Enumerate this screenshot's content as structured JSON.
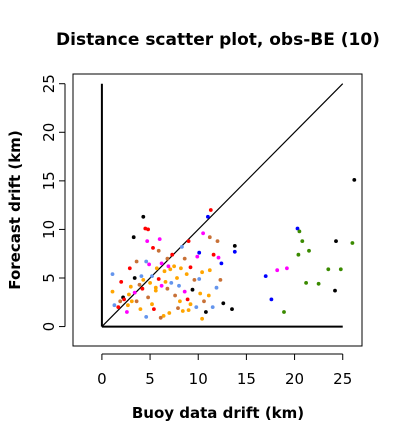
{
  "chart_data": {
    "type": "scatter",
    "title": "Distance scatter plot, obs-BE (10)",
    "xlabel": "Buoy data drift (km)",
    "ylabel": "Forecast drift (km)",
    "xlim": [
      -3,
      27
    ],
    "ylim": [
      -2,
      26
    ],
    "xticks": [
      "0",
      "5",
      "10",
      "15",
      "20",
      "25"
    ],
    "yticks": [
      "0",
      "5",
      "10",
      "15",
      "20",
      "25"
    ],
    "tick_values": [
      0,
      5,
      10,
      15,
      20,
      25
    ],
    "grid": false,
    "reference_lines": [
      {
        "name": "diagonal",
        "points": [
          [
            0,
            0
          ],
          [
            25,
            25
          ]
        ]
      },
      {
        "name": "bottom",
        "points": [
          [
            0,
            0
          ],
          [
            25,
            0
          ]
        ]
      },
      {
        "name": "left",
        "points": [
          [
            0,
            0
          ],
          [
            0,
            25
          ]
        ]
      }
    ],
    "points": [
      {
        "x": 26.2,
        "y": 15.1,
        "color": "#000000"
      },
      {
        "x": 4.3,
        "y": 11.3,
        "color": "#000000"
      },
      {
        "x": 11.0,
        "y": 11.3,
        "color": "#0000ff"
      },
      {
        "x": 11.3,
        "y": 12.0,
        "color": "#ff0000"
      },
      {
        "x": 13.8,
        "y": 8.3,
        "color": "#000000"
      },
      {
        "x": 13.8,
        "y": 7.7,
        "color": "#0000ff"
      },
      {
        "x": 24.3,
        "y": 8.8,
        "color": "#000000"
      },
      {
        "x": 26.0,
        "y": 8.6,
        "color": "#3a8a00"
      },
      {
        "x": 20.3,
        "y": 10.1,
        "color": "#0000ff"
      },
      {
        "x": 20.5,
        "y": 9.8,
        "color": "#3a8a00"
      },
      {
        "x": 20.8,
        "y": 8.8,
        "color": "#3a8a00"
      },
      {
        "x": 21.5,
        "y": 7.8,
        "color": "#3a8a00"
      },
      {
        "x": 20.4,
        "y": 7.4,
        "color": "#3a8a00"
      },
      {
        "x": 23.5,
        "y": 5.9,
        "color": "#3a8a00"
      },
      {
        "x": 24.8,
        "y": 5.9,
        "color": "#3a8a00"
      },
      {
        "x": 21.2,
        "y": 4.5,
        "color": "#3a8a00"
      },
      {
        "x": 22.5,
        "y": 4.4,
        "color": "#3a8a00"
      },
      {
        "x": 24.2,
        "y": 3.7,
        "color": "#000000"
      },
      {
        "x": 18.9,
        "y": 1.5,
        "color": "#3a8a00"
      },
      {
        "x": 17.0,
        "y": 5.2,
        "color": "#0000ff"
      },
      {
        "x": 17.6,
        "y": 2.8,
        "color": "#0000ff"
      },
      {
        "x": 18.2,
        "y": 5.8,
        "color": "#ff00ff"
      },
      {
        "x": 19.2,
        "y": 6.0,
        "color": "#ff00ff"
      },
      {
        "x": 13.5,
        "y": 1.8,
        "color": "#000000"
      },
      {
        "x": 12.4,
        "y": 6.5,
        "color": "#0000ff"
      },
      {
        "x": 12.0,
        "y": 8.8,
        "color": "#c87137"
      },
      {
        "x": 11.6,
        "y": 7.4,
        "color": "#ff0000"
      },
      {
        "x": 12.1,
        "y": 7.1,
        "color": "#ff00ff"
      },
      {
        "x": 11.2,
        "y": 9.2,
        "color": "#c87137"
      },
      {
        "x": 10.5,
        "y": 9.6,
        "color": "#ff00ff"
      },
      {
        "x": 9.0,
        "y": 8.8,
        "color": "#ff0000"
      },
      {
        "x": 10.1,
        "y": 7.6,
        "color": "#0000ff"
      },
      {
        "x": 8.3,
        "y": 8.2,
        "color": "#6495ed"
      },
      {
        "x": 7.3,
        "y": 7.4,
        "color": "#ff0000"
      },
      {
        "x": 6.0,
        "y": 9.0,
        "color": "#ff00ff"
      },
      {
        "x": 4.8,
        "y": 10.0,
        "color": "#ff0000"
      },
      {
        "x": 4.5,
        "y": 10.1,
        "color": "#ff0000"
      },
      {
        "x": 3.3,
        "y": 9.2,
        "color": "#000000"
      },
      {
        "x": 5.3,
        "y": 8.1,
        "color": "#ff0000"
      },
      {
        "x": 4.7,
        "y": 8.8,
        "color": "#ff00ff"
      },
      {
        "x": 5.9,
        "y": 7.8,
        "color": "#c87137"
      },
      {
        "x": 6.8,
        "y": 7.0,
        "color": "#c87137"
      },
      {
        "x": 6.2,
        "y": 6.5,
        "color": "#ff00ff"
      },
      {
        "x": 7.5,
        "y": 6.2,
        "color": "#ffa500"
      },
      {
        "x": 8.2,
        "y": 6.0,
        "color": "#ffa500"
      },
      {
        "x": 7.1,
        "y": 5.9,
        "color": "#ffa500"
      },
      {
        "x": 6.5,
        "y": 5.7,
        "color": "#ffa500"
      },
      {
        "x": 5.9,
        "y": 4.9,
        "color": "#ff0000"
      },
      {
        "x": 5.2,
        "y": 5.2,
        "color": "#6495ed"
      },
      {
        "x": 4.1,
        "y": 5.2,
        "color": "#6495ed"
      },
      {
        "x": 4.6,
        "y": 6.7,
        "color": "#6495ed"
      },
      {
        "x": 3.6,
        "y": 6.7,
        "color": "#c87137"
      },
      {
        "x": 2.9,
        "y": 6.0,
        "color": "#ff0000"
      },
      {
        "x": 3.9,
        "y": 4.3,
        "color": "#c87137"
      },
      {
        "x": 3.4,
        "y": 3.5,
        "color": "#ff00ff"
      },
      {
        "x": 2.8,
        "y": 3.3,
        "color": "#ffa500"
      },
      {
        "x": 2.2,
        "y": 3.0,
        "color": "#000000"
      },
      {
        "x": 1.9,
        "y": 2.6,
        "color": "#c87137"
      },
      {
        "x": 2.7,
        "y": 2.2,
        "color": "#ffa500"
      },
      {
        "x": 1.1,
        "y": 3.6,
        "color": "#ffa500"
      },
      {
        "x": 1.1,
        "y": 5.4,
        "color": "#6495ed"
      },
      {
        "x": 1.3,
        "y": 2.2,
        "color": "#6495ed"
      },
      {
        "x": 2.6,
        "y": 1.5,
        "color": "#ff00ff"
      },
      {
        "x": 3.6,
        "y": 2.6,
        "color": "#c87137"
      },
      {
        "x": 4.2,
        "y": 3.9,
        "color": "#ff0000"
      },
      {
        "x": 4.8,
        "y": 3.0,
        "color": "#c87137"
      },
      {
        "x": 5.2,
        "y": 2.3,
        "color": "#ffa500"
      },
      {
        "x": 5.6,
        "y": 3.7,
        "color": "#ffa500"
      },
      {
        "x": 6.2,
        "y": 4.2,
        "color": "#ff00ff"
      },
      {
        "x": 6.8,
        "y": 3.9,
        "color": "#c87137"
      },
      {
        "x": 7.2,
        "y": 4.5,
        "color": "#6495ed"
      },
      {
        "x": 7.6,
        "y": 3.2,
        "color": "#c87137"
      },
      {
        "x": 8.1,
        "y": 2.6,
        "color": "#ffa500"
      },
      {
        "x": 8.6,
        "y": 3.6,
        "color": "#ff00ff"
      },
      {
        "x": 8.9,
        "y": 2.8,
        "color": "#ff0000"
      },
      {
        "x": 9.4,
        "y": 3.8,
        "color": "#000000"
      },
      {
        "x": 9.2,
        "y": 2.3,
        "color": "#ffa500"
      },
      {
        "x": 9.8,
        "y": 2.0,
        "color": "#6495ed"
      },
      {
        "x": 10.2,
        "y": 3.4,
        "color": "#ffa500"
      },
      {
        "x": 10.6,
        "y": 2.6,
        "color": "#c87137"
      },
      {
        "x": 11.1,
        "y": 3.2,
        "color": "#ffa500"
      },
      {
        "x": 11.5,
        "y": 2.0,
        "color": "#6495ed"
      },
      {
        "x": 10.8,
        "y": 1.5,
        "color": "#000000"
      },
      {
        "x": 10.4,
        "y": 0.8,
        "color": "#ffa500"
      },
      {
        "x": 9.0,
        "y": 1.7,
        "color": "#ffa500"
      },
      {
        "x": 8.4,
        "y": 1.6,
        "color": "#ffa500"
      },
      {
        "x": 7.9,
        "y": 1.9,
        "color": "#c87137"
      },
      {
        "x": 7.0,
        "y": 1.4,
        "color": "#ffa500"
      },
      {
        "x": 6.4,
        "y": 1.1,
        "color": "#ffa500"
      },
      {
        "x": 6.1,
        "y": 0.9,
        "color": "#c87137"
      },
      {
        "x": 5.4,
        "y": 1.8,
        "color": "#ff0000"
      },
      {
        "x": 4.6,
        "y": 1.0,
        "color": "#6495ed"
      },
      {
        "x": 4.0,
        "y": 1.8,
        "color": "#ffa500"
      },
      {
        "x": 3.1,
        "y": 2.6,
        "color": "#ffa500"
      },
      {
        "x": 1.7,
        "y": 2.0,
        "color": "#ff0000"
      },
      {
        "x": 2.3,
        "y": 2.8,
        "color": "#ff0000"
      },
      {
        "x": 3.0,
        "y": 4.1,
        "color": "#ffa500"
      },
      {
        "x": 4.3,
        "y": 4.8,
        "color": "#ffa500"
      },
      {
        "x": 5.0,
        "y": 4.5,
        "color": "#ffa500"
      },
      {
        "x": 5.6,
        "y": 4.0,
        "color": "#ffa500"
      },
      {
        "x": 6.6,
        "y": 4.6,
        "color": "#ffa500"
      },
      {
        "x": 7.8,
        "y": 5.0,
        "color": "#ffa500"
      },
      {
        "x": 8.0,
        "y": 4.2,
        "color": "#6495ed"
      },
      {
        "x": 8.8,
        "y": 5.4,
        "color": "#ffa500"
      },
      {
        "x": 9.2,
        "y": 6.1,
        "color": "#ff0000"
      },
      {
        "x": 9.6,
        "y": 4.8,
        "color": "#c87137"
      },
      {
        "x": 10.1,
        "y": 4.9,
        "color": "#6495ed"
      },
      {
        "x": 10.4,
        "y": 5.6,
        "color": "#ffa500"
      },
      {
        "x": 11.2,
        "y": 5.8,
        "color": "#ffa500"
      },
      {
        "x": 11.9,
        "y": 4.0,
        "color": "#6495ed"
      },
      {
        "x": 12.3,
        "y": 4.8,
        "color": "#c87137"
      },
      {
        "x": 3.4,
        "y": 5.0,
        "color": "#000000"
      },
      {
        "x": 2.0,
        "y": 4.6,
        "color": "#ff0000"
      },
      {
        "x": 4.9,
        "y": 6.4,
        "color": "#ff00ff"
      },
      {
        "x": 5.7,
        "y": 6.0,
        "color": "#ffa500"
      },
      {
        "x": 6.9,
        "y": 6.2,
        "color": "#ff00ff"
      },
      {
        "x": 8.6,
        "y": 7.0,
        "color": "#c87137"
      },
      {
        "x": 9.9,
        "y": 7.2,
        "color": "#ff00ff"
      },
      {
        "x": 12.6,
        "y": 2.4,
        "color": "#000000"
      }
    ]
  }
}
